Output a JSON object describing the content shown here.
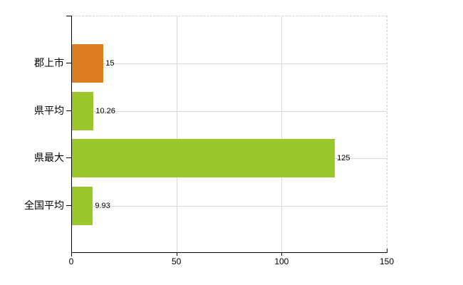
{
  "chart_data": {
    "type": "bar",
    "orientation": "horizontal",
    "title": "",
    "xlabel": "",
    "ylabel": "",
    "legend": "none",
    "grid": true,
    "categories": [
      "郡上市",
      "県平均",
      "県最大",
      "全国平均"
    ],
    "values": [
      15,
      10.26,
      125,
      9.93
    ],
    "value_labels": [
      "15",
      "10.26",
      "125",
      "9.93"
    ],
    "bar_colors": [
      "#dd7d21",
      "#9cc62e",
      "#9cc62e",
      "#9cc62e"
    ],
    "xlim": [
      0,
      150
    ],
    "xticks": [
      0,
      50,
      100,
      150
    ],
    "xtick_labels": [
      "0",
      "50",
      "100",
      "150"
    ]
  },
  "colors": {
    "background": "#ffffff",
    "axis": "#000000",
    "h_grid": "#d6dad4",
    "v_grid": "#d9d9d9",
    "plot_border_dashed": "#d6ccd3",
    "text": "#000000"
  }
}
